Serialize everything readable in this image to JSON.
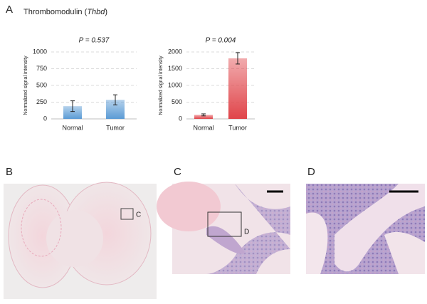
{
  "figure": {
    "panel_labels": [
      "A",
      "B",
      "C",
      "D"
    ],
    "title": [
      "Thrombomodulin (",
      "Thbd",
      ")"
    ],
    "box_labels": [
      "C",
      "D"
    ]
  },
  "chart_data": [
    {
      "type": "bar",
      "title": "P = 0.537",
      "ylabel": "Normalized signal intensity",
      "categories": [
        "Normal",
        "Tumor"
      ],
      "values": [
        190,
        285
      ],
      "errors": [
        80,
        75
      ],
      "color": "#5b9bd5",
      "ylim": [
        0,
        1000
      ],
      "yticks": [
        0,
        250,
        500,
        750,
        1000
      ],
      "grid": true
    },
    {
      "type": "bar",
      "title": "P = 0.004",
      "ylabel": "Normalized signal intensity",
      "categories": [
        "Normal",
        "Tumor"
      ],
      "values": [
        120,
        1810
      ],
      "errors": [
        30,
        170
      ],
      "color": "#e0454a",
      "ylim": [
        0,
        2000
      ],
      "yticks": [
        0,
        500,
        1000,
        1500,
        2000
      ],
      "grid": true
    }
  ]
}
